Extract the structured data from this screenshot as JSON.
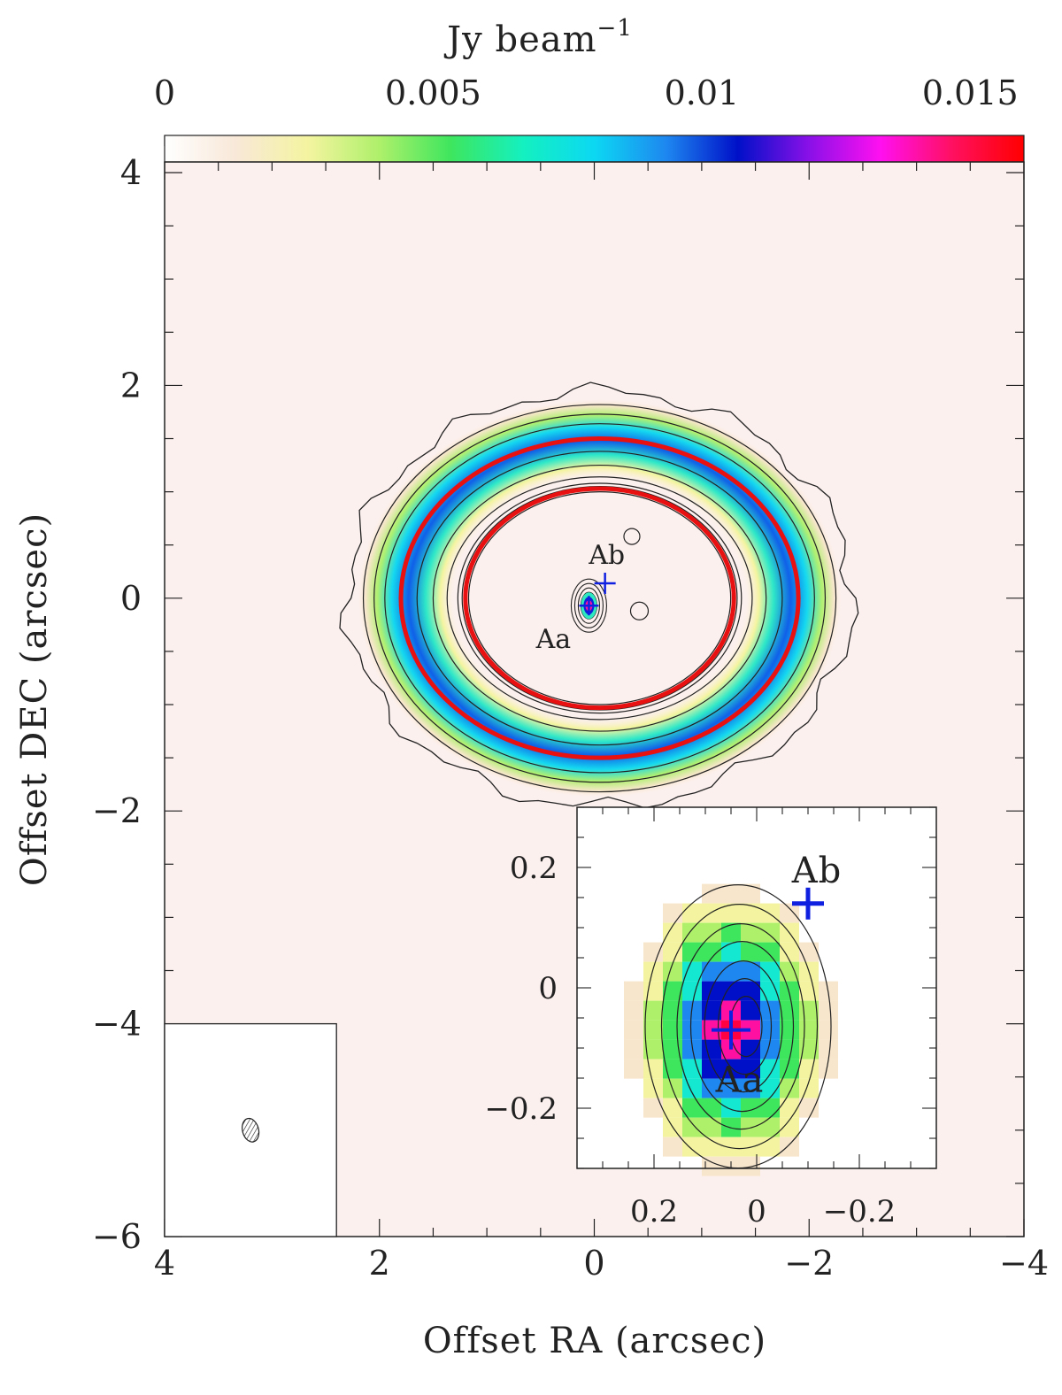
{
  "chart_data": {
    "type": "heatmap",
    "colorbar": {
      "label": "Jy beam",
      "label_exponent": "−1",
      "ticks": [
        "0",
        "0.005",
        "0.01",
        "0.015"
      ],
      "tick_values": [
        0,
        0.005,
        0.01,
        0.015
      ],
      "range": [
        0,
        0.016
      ],
      "colors": [
        "#ffffff",
        "#f8e8d8",
        "#f4f4a0",
        "#aef06a",
        "#3ee65e",
        "#14f0c0",
        "#0cd8f2",
        "#1e88f0",
        "#0010c8",
        "#8a10e8",
        "#ff10f0",
        "#ff1060",
        "#ff0000"
      ]
    },
    "xlabel": "Offset RA (arcsec)",
    "ylabel": "Offset DEC (arcsec)",
    "xlim": [
      4,
      -4
    ],
    "ylim": [
      -6,
      4.1
    ],
    "x_ticks": [
      "4",
      "2",
      "0",
      "−2",
      "−4"
    ],
    "x_tick_values": [
      4,
      2,
      0,
      -2,
      -4
    ],
    "y_ticks": [
      "−6",
      "−4",
      "−2",
      "0",
      "2",
      "4"
    ],
    "y_tick_values": [
      -6,
      -4,
      -2,
      0,
      2,
      4
    ],
    "sources": [
      {
        "name": "Aa",
        "x": 0.05,
        "y": -0.07,
        "color": "#1020e0"
      },
      {
        "name": "Ab",
        "x": -0.1,
        "y": 0.14,
        "color": "#1020e0"
      }
    ],
    "ring": {
      "center": [
        -0.05,
        0.0
      ],
      "fit_ellipses": [
        {
          "a": 1.85,
          "b": 1.5,
          "color": "#e81010"
        },
        {
          "a": 1.25,
          "b": 1.03,
          "color": "#e81010"
        }
      ],
      "peak_color": "#0020d0"
    },
    "beam": {
      "x": 3.2,
      "y": -5.0,
      "major": 0.15,
      "minor": 0.1
    },
    "inset": {
      "xlim": [
        0.35,
        -0.35
      ],
      "ylim": [
        -0.3,
        0.3
      ],
      "x_ticks": [
        "0.2",
        "0",
        "−0.2"
      ],
      "x_tick_values": [
        0.2,
        0,
        -0.2
      ],
      "y_ticks": [
        "0.2",
        "0",
        "−0.2"
      ],
      "y_tick_values": [
        0.2,
        0,
        -0.2
      ]
    }
  }
}
